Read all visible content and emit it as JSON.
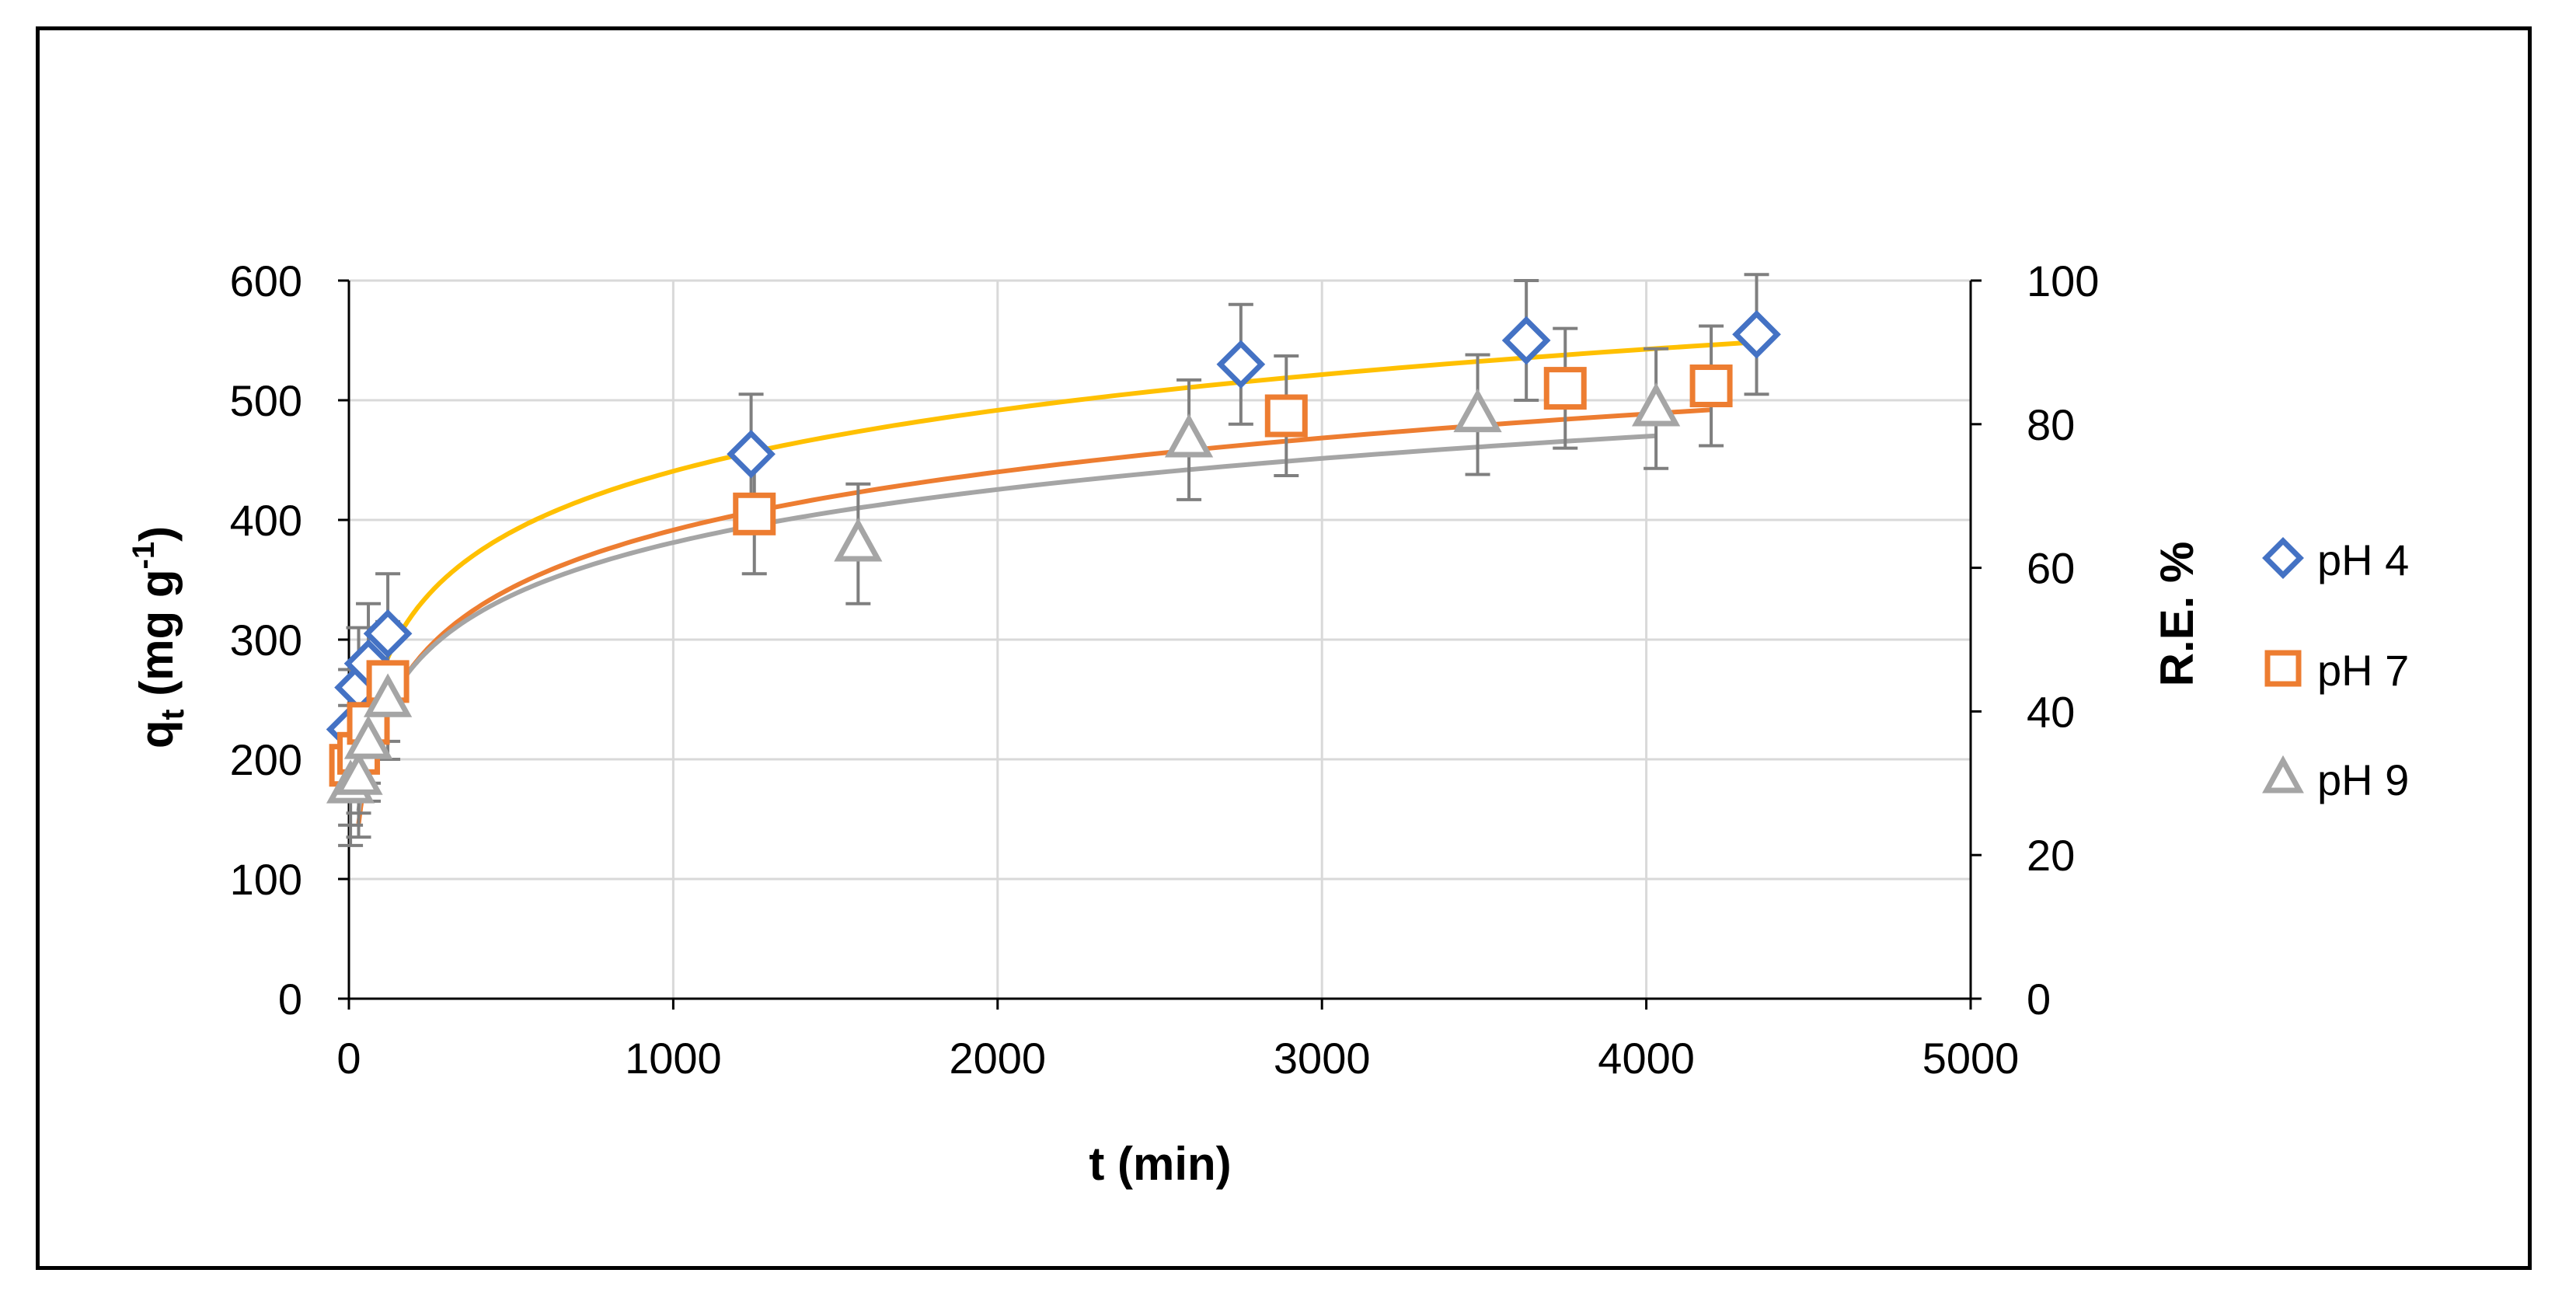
{
  "chart_data": {
    "type": "scatter",
    "title": "",
    "xlabel": "t (min)",
    "ylabel": "q_t (mg g^-1)",
    "ylabel_parts": {
      "q": "q",
      "sub": "t",
      "unit_open": " (mg g",
      "sup": "-1",
      "close": ")"
    },
    "y2label": "R.E. %",
    "xlim": [
      0,
      5000
    ],
    "ylim": [
      0,
      600
    ],
    "y2lim": [
      0,
      100
    ],
    "xticks": [
      0,
      1000,
      2000,
      3000,
      4000,
      5000
    ],
    "yticks": [
      0,
      100,
      200,
      300,
      400,
      500,
      600
    ],
    "y2ticks": [
      0,
      20,
      40,
      60,
      80,
      100
    ],
    "xtick_labels": [
      "0",
      "1000",
      "2000",
      "3000",
      "4000",
      "5000"
    ],
    "ytick_labels": [
      "0",
      "100",
      "200",
      "300",
      "400",
      "500",
      "600"
    ],
    "y2tick_labels": [
      "0",
      "20",
      "40",
      "60",
      "80",
      "100"
    ],
    "grid": true,
    "legend_position": "right",
    "series": [
      {
        "name": "pH 4",
        "marker": "diamond",
        "color": "#4472C4",
        "fit_color": "#FFC000",
        "error": 50,
        "x": [
          5,
          30,
          60,
          120,
          1240,
          2750,
          3630,
          4340
        ],
        "y": [
          225,
          260,
          280,
          305,
          455,
          530,
          550,
          555
        ],
        "fit_log": {
          "a": -67,
          "b": 73.5,
          "x_from": 30,
          "x_to": 4340
        }
      },
      {
        "name": "pH 7",
        "marker": "square",
        "color": "#ED7D31",
        "fit_color": "#ED7D31",
        "error": 50,
        "x": [
          5,
          30,
          60,
          120,
          1250,
          2890,
          3750,
          4200
        ],
        "y": [
          195,
          205,
          230,
          265,
          405,
          487,
          510,
          512
        ],
        "fit_log": {
          "a": -92,
          "b": 70,
          "x_from": 30,
          "x_to": 4200
        }
      },
      {
        "name": "pH 9",
        "marker": "triangle",
        "color": "#A5A5A5",
        "fit_color": "#A5A5A5",
        "error": 50,
        "x": [
          5,
          30,
          60,
          120,
          1570,
          2590,
          3480,
          4030
        ],
        "y": [
          178,
          185,
          215,
          250,
          380,
          467,
          488,
          493
        ],
        "fit_log": {
          "a": -61,
          "b": 64,
          "x_from": 30,
          "x_to": 4030
        }
      }
    ]
  }
}
